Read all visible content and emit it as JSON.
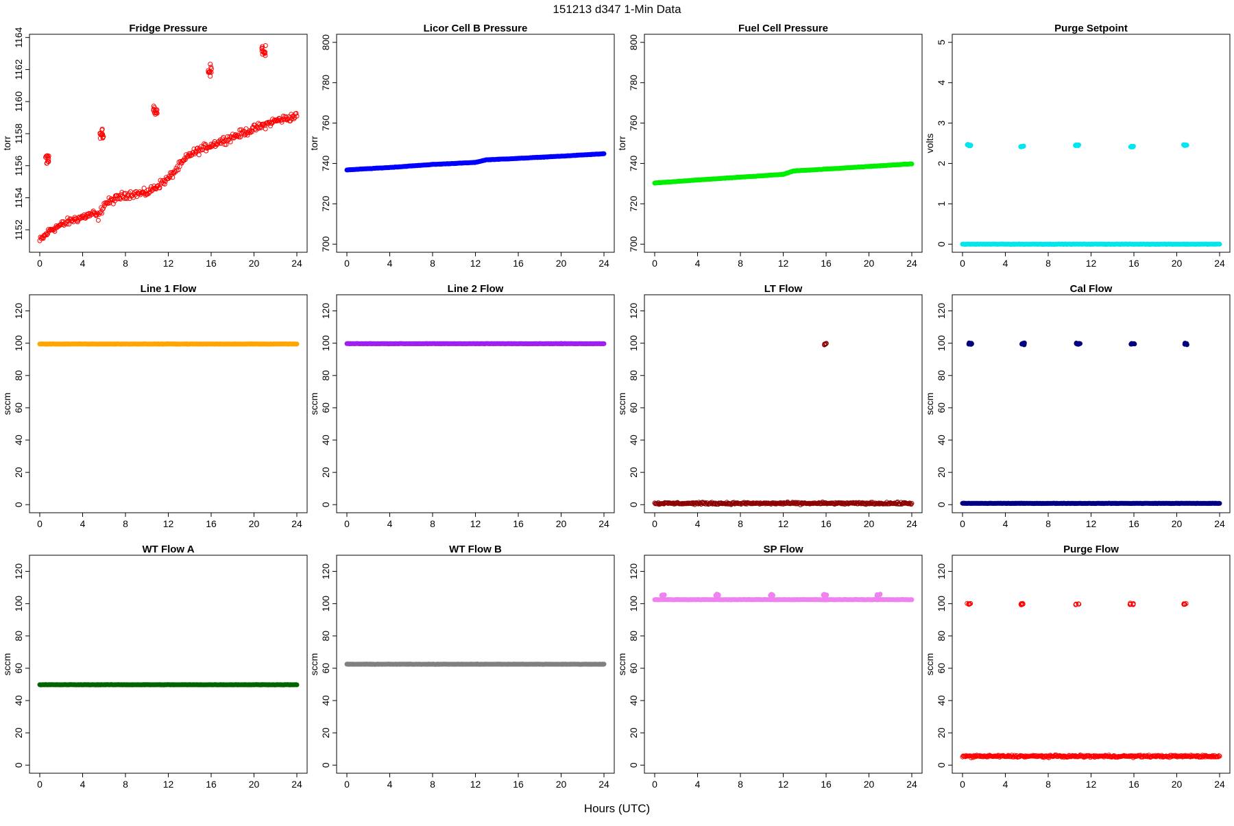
{
  "page": {
    "title": "151213    d347    1-Min Data",
    "xlabel": "Hours (UTC)"
  },
  "x_ticks": [
    0,
    4,
    8,
    12,
    16,
    20,
    24
  ],
  "chart_data": [
    {
      "type": "scatter",
      "title": "Fridge Pressure",
      "xlabel": "",
      "ylabel": "torr",
      "color": "#ff0000",
      "marker": "open-circle",
      "xlim": [
        0,
        24
      ],
      "ylim": [
        1150.6,
        1164.2
      ],
      "yticks": [
        1152,
        1154,
        1156,
        1158,
        1160,
        1162,
        1164
      ],
      "series": [
        {
          "x": [
            0,
            1,
            2,
            3,
            4,
            5,
            5.5,
            6,
            8,
            10,
            12,
            14,
            16,
            18,
            20,
            22,
            24
          ],
          "y": [
            1151.3,
            1152.0,
            1152.3,
            1152.6,
            1152.8,
            1153.0,
            1152.8,
            1153.6,
            1154.2,
            1154.3,
            1155.2,
            1156.7,
            1157.3,
            1157.8,
            1158.3,
            1158.8,
            1159.1
          ]
        },
        {
          "x": [
            0.7,
            5.8,
            10.8,
            15.9,
            20.9
          ],
          "y": [
            1156.4,
            1158.0,
            1159.4,
            1162.0,
            1163.1
          ]
        }
      ]
    },
    {
      "type": "scatter",
      "title": "Licor Cell B Pressure",
      "xlabel": "",
      "ylabel": "torr",
      "color": "#0000ff",
      "marker": "filled-circle",
      "xlim": [
        0,
        24
      ],
      "ylim": [
        696,
        804
      ],
      "yticks": [
        700,
        720,
        740,
        760,
        780,
        800
      ],
      "series": [
        {
          "x": [
            0,
            4,
            8,
            12,
            13,
            16,
            20,
            24
          ],
          "y": [
            736.8,
            738.0,
            739.5,
            740.5,
            741.8,
            742.5,
            743.6,
            744.8
          ]
        }
      ]
    },
    {
      "type": "scatter",
      "title": "Fuel Cell Pressure",
      "xlabel": "",
      "ylabel": "torr",
      "color": "#00ee00",
      "marker": "filled-circle",
      "xlim": [
        0,
        24
      ],
      "ylim": [
        696,
        804
      ],
      "yticks": [
        700,
        720,
        740,
        760,
        780,
        800
      ],
      "series": [
        {
          "x": [
            0,
            4,
            8,
            12,
            13,
            16,
            20,
            24
          ],
          "y": [
            730.3,
            731.8,
            733.2,
            734.6,
            736.3,
            737.2,
            738.5,
            739.8
          ]
        }
      ]
    },
    {
      "type": "scatter",
      "title": "Purge Setpoint",
      "xlabel": "",
      "ylabel": "volts",
      "color": "#00e5ee",
      "marker": "filled-circle",
      "xlim": [
        0,
        24
      ],
      "ylim": [
        -0.2,
        5.2
      ],
      "yticks": [
        0,
        1,
        2,
        3,
        4,
        5
      ],
      "series": [
        {
          "x": [
            0,
            24
          ],
          "y": [
            0,
            0
          ]
        },
        {
          "x": [
            0.6,
            5.6,
            10.7,
            15.8,
            20.8
          ],
          "y": [
            2.45,
            2.42,
            2.45,
            2.42,
            2.45
          ]
        }
      ]
    },
    {
      "type": "scatter",
      "title": "Line 1 Flow",
      "xlabel": "",
      "ylabel": "sccm",
      "color": "#ffa500",
      "marker": "filled-circle",
      "xlim": [
        0,
        24
      ],
      "ylim": [
        -5,
        130
      ],
      "yticks": [
        0,
        20,
        40,
        60,
        80,
        100,
        120
      ],
      "series": [
        {
          "x": [
            0,
            24
          ],
          "y": [
            99.5,
            99.5
          ]
        }
      ]
    },
    {
      "type": "scatter",
      "title": "Line 2 Flow",
      "xlabel": "",
      "ylabel": "sccm",
      "color": "#a020f0",
      "marker": "filled-circle",
      "xlim": [
        0,
        24
      ],
      "ylim": [
        -5,
        130
      ],
      "yticks": [
        0,
        20,
        40,
        60,
        80,
        100,
        120
      ],
      "series": [
        {
          "x": [
            0,
            24
          ],
          "y": [
            99.7,
            99.7
          ]
        }
      ]
    },
    {
      "type": "scatter",
      "title": "LT Flow",
      "xlabel": "",
      "ylabel": "sccm",
      "color": "#8b0000",
      "marker": "open-circle",
      "xlim": [
        0,
        24
      ],
      "ylim": [
        -5,
        130
      ],
      "yticks": [
        0,
        20,
        40,
        60,
        80,
        100,
        120
      ],
      "series": [
        {
          "x": [
            0,
            24
          ],
          "y": [
            0.8,
            0.8
          ]
        },
        {
          "x": [
            15.9
          ],
          "y": [
            99.5
          ]
        }
      ]
    },
    {
      "type": "scatter",
      "title": "Cal Flow",
      "xlabel": "",
      "ylabel": "sccm",
      "color": "#000080",
      "marker": "filled-circle",
      "xlim": [
        0,
        24
      ],
      "ylim": [
        -5,
        130
      ],
      "yticks": [
        0,
        20,
        40,
        60,
        80,
        100,
        120
      ],
      "series": [
        {
          "x": [
            0,
            24
          ],
          "y": [
            0.8,
            0.8
          ]
        },
        {
          "x": [
            0.7,
            5.7,
            10.8,
            15.9,
            20.9
          ],
          "y": [
            99.7,
            99.7,
            99.7,
            99.7,
            99.7
          ]
        }
      ]
    },
    {
      "type": "scatter",
      "title": "WT Flow A",
      "xlabel": "",
      "ylabel": "sccm",
      "color": "#006400",
      "marker": "filled-circle",
      "xlim": [
        0,
        24
      ],
      "ylim": [
        -5,
        130
      ],
      "yticks": [
        0,
        20,
        40,
        60,
        80,
        100,
        120
      ],
      "series": [
        {
          "x": [
            0,
            24
          ],
          "y": [
            49.8,
            49.8
          ]
        }
      ]
    },
    {
      "type": "scatter",
      "title": "WT Flow B",
      "xlabel": "",
      "ylabel": "sccm",
      "color": "#808080",
      "marker": "filled-circle",
      "xlim": [
        0,
        24
      ],
      "ylim": [
        -5,
        130
      ],
      "yticks": [
        0,
        20,
        40,
        60,
        80,
        100,
        120
      ],
      "series": [
        {
          "x": [
            0,
            24
          ],
          "y": [
            62.5,
            62.5
          ]
        }
      ]
    },
    {
      "type": "scatter",
      "title": "SP Flow",
      "xlabel": "",
      "ylabel": "sccm",
      "color": "#ee82ee",
      "marker": "filled-circle",
      "xlim": [
        0,
        24
      ],
      "ylim": [
        -5,
        130
      ],
      "yticks": [
        0,
        20,
        40,
        60,
        80,
        100,
        120
      ],
      "series": [
        {
          "x": [
            0,
            24
          ],
          "y": [
            102.5,
            102.5
          ]
        },
        {
          "x": [
            0.8,
            5.8,
            10.9,
            15.9,
            20.9
          ],
          "y": [
            105.3,
            105.3,
            105.3,
            105.3,
            105.3
          ]
        }
      ]
    },
    {
      "type": "scatter",
      "title": "Purge Flow",
      "xlabel": "",
      "ylabel": "sccm",
      "color": "#ff0000",
      "marker": "open-circle",
      "xlim": [
        0,
        24
      ],
      "ylim": [
        -5,
        130
      ],
      "yticks": [
        0,
        20,
        40,
        60,
        80,
        100,
        120
      ],
      "series": [
        {
          "x": [
            0,
            24
          ],
          "y": [
            5.5,
            5.5
          ]
        },
        {
          "x": [
            0.6,
            5.6,
            10.7,
            15.8,
            20.8
          ],
          "y": [
            99.8,
            99.8,
            99.8,
            99.8,
            99.8
          ]
        }
      ]
    }
  ]
}
